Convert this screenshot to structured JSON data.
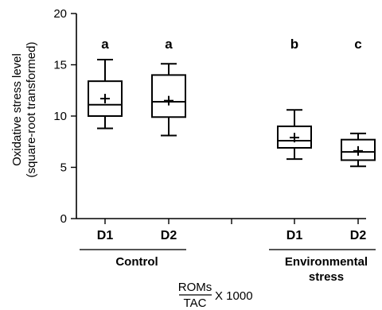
{
  "chart_data": {
    "type": "box",
    "ylabel_line1": "Oxidative stress level",
    "ylabel_line2": "(square-root transformed)",
    "ylim": [
      0,
      20
    ],
    "yticks": [
      0,
      5,
      10,
      15,
      20
    ],
    "categories": [
      "D1",
      "D2",
      "D1",
      "D2"
    ],
    "groups": [
      {
        "label_lines": [
          "Control"
        ],
        "members": [
          0,
          1
        ]
      },
      {
        "label_lines": [
          "Environmental",
          "stress"
        ],
        "members": [
          2,
          3
        ]
      }
    ],
    "boxes": [
      {
        "category": "D1",
        "group": "Control",
        "min": 8.8,
        "q1": 10.0,
        "median": 11.1,
        "q3": 13.4,
        "max": 15.5,
        "mean": 11.7,
        "letter": "a"
      },
      {
        "category": "D2",
        "group": "Control",
        "min": 8.1,
        "q1": 9.9,
        "median": 11.4,
        "q3": 14.0,
        "max": 15.1,
        "mean": 11.5,
        "letter": "a"
      },
      {
        "category": "D1",
        "group": "Environmental stress",
        "min": 5.8,
        "q1": 6.9,
        "median": 7.6,
        "q3": 9.0,
        "max": 10.6,
        "mean": 7.9,
        "letter": "b"
      },
      {
        "category": "D2",
        "group": "Environmental stress",
        "min": 5.1,
        "q1": 5.7,
        "median": 6.5,
        "q3": 7.7,
        "max": 8.3,
        "mean": 6.6,
        "letter": "c"
      }
    ],
    "formula": {
      "numerator": "ROMs",
      "denominator": "TAC",
      "suffix": "X 1000"
    }
  }
}
